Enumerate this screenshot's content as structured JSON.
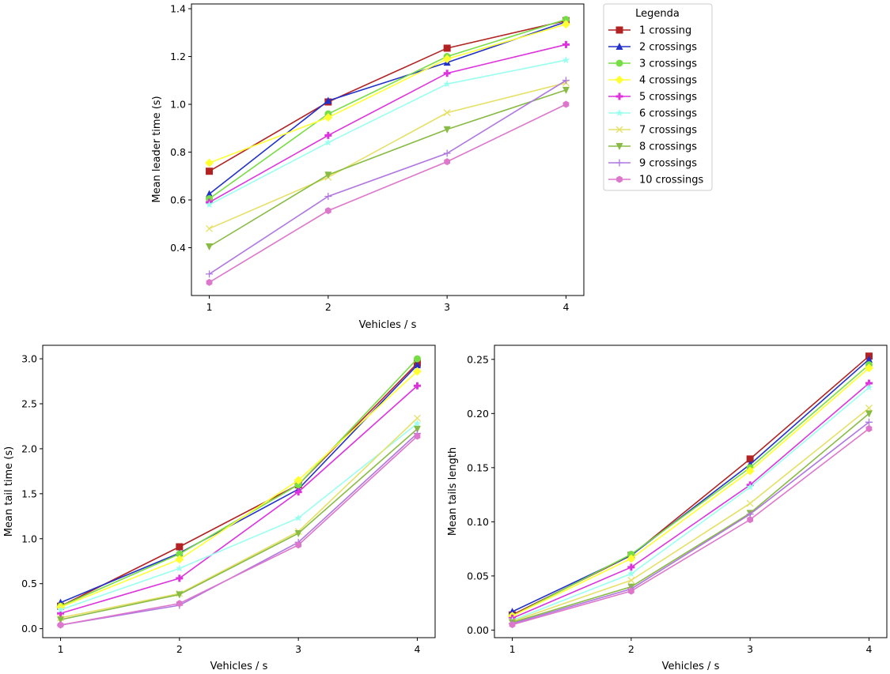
{
  "legend": {
    "title": "Legenda",
    "entries": [
      {
        "label": "1 crossing",
        "color": "#b22222",
        "marker": "square"
      },
      {
        "label": "2 crossings",
        "color": "#2231c8",
        "marker": "triangle"
      },
      {
        "label": "3 crossings",
        "color": "#77dd44",
        "marker": "circle"
      },
      {
        "label": "4 crossings",
        "color": "#ffff33",
        "marker": "diamond"
      },
      {
        "label": "5 crossings",
        "color": "#dd33dd",
        "marker": "plus"
      },
      {
        "label": "6 crossings",
        "color": "#99ffee",
        "marker": "star"
      },
      {
        "label": "7 crossings",
        "color": "#e6e066",
        "marker": "x"
      },
      {
        "label": "8 crossings",
        "color": "#88bb44",
        "marker": "triangle-down"
      },
      {
        "label": "9 crossings",
        "color": "#b077e0",
        "marker": "thin-plus"
      },
      {
        "label": "10 crossings",
        "color": "#dd77cc",
        "marker": "hexagon"
      }
    ]
  },
  "chart_data": [
    {
      "type": "line",
      "xlabel": "Vehicles / s",
      "ylabel": "Mean leader time (s)",
      "x": [
        1,
        2,
        3,
        4
      ],
      "xticks": [
        "1",
        "2",
        "3",
        "4"
      ],
      "yticks": [
        "0.4",
        "0.6",
        "0.8",
        "1.0",
        "1.2",
        "1.4"
      ],
      "xlim": [
        0.85,
        4.15
      ],
      "ylim": [
        0.2,
        1.42
      ],
      "grid": false,
      "legend": "outside-right",
      "series": [
        {
          "name": "1 crossing",
          "values": [
            0.72,
            1.01,
            1.235,
            1.35
          ]
        },
        {
          "name": "2 crossings",
          "values": [
            0.625,
            1.015,
            1.175,
            1.345
          ]
        },
        {
          "name": "3 crossings",
          "values": [
            0.605,
            0.96,
            1.2,
            1.355
          ]
        },
        {
          "name": "4 crossings",
          "values": [
            0.755,
            0.945,
            1.19,
            1.335
          ]
        },
        {
          "name": "5 crossings",
          "values": [
            0.59,
            0.87,
            1.13,
            1.25
          ]
        },
        {
          "name": "6 crossings",
          "values": [
            0.58,
            0.84,
            1.085,
            1.185
          ]
        },
        {
          "name": "7 crossings",
          "values": [
            0.48,
            0.695,
            0.965,
            1.09
          ]
        },
        {
          "name": "8 crossings",
          "values": [
            0.405,
            0.705,
            0.895,
            1.06
          ]
        },
        {
          "name": "9 crossings",
          "values": [
            0.29,
            0.615,
            0.795,
            1.1
          ]
        },
        {
          "name": "10 crossings",
          "values": [
            0.255,
            0.555,
            0.76,
            1.0
          ]
        }
      ]
    },
    {
      "type": "line",
      "xlabel": "Vehicles / s",
      "ylabel": "Mean tail time (s)",
      "x": [
        1,
        2,
        3,
        4
      ],
      "xticks": [
        "1",
        "2",
        "3",
        "4"
      ],
      "yticks": [
        "0.0",
        "0.5",
        "1.0",
        "1.5",
        "2.0",
        "2.5",
        "3.0"
      ],
      "xlim": [
        0.85,
        4.15
      ],
      "ylim": [
        -0.1,
        3.15
      ],
      "grid": false,
      "series": [
        {
          "name": "1 crossing",
          "values": [
            0.25,
            0.91,
            1.6,
            2.95
          ]
        },
        {
          "name": "2 crossings",
          "values": [
            0.29,
            0.84,
            1.55,
            2.93
          ]
        },
        {
          "name": "3 crossings",
          "values": [
            0.25,
            0.83,
            1.6,
            3.0
          ]
        },
        {
          "name": "4 crossings",
          "values": [
            0.24,
            0.77,
            1.65,
            2.86
          ]
        },
        {
          "name": "5 crossings",
          "values": [
            0.17,
            0.56,
            1.52,
            2.7
          ]
        },
        {
          "name": "6 crossings",
          "values": [
            0.21,
            0.67,
            1.23,
            2.28
          ]
        },
        {
          "name": "7 crossings",
          "values": [
            0.12,
            0.39,
            1.08,
            2.34
          ]
        },
        {
          "name": "8 crossings",
          "values": [
            0.1,
            0.38,
            1.06,
            2.22
          ]
        },
        {
          "name": "9 crossings",
          "values": [
            0.04,
            0.26,
            0.96,
            2.17
          ]
        },
        {
          "name": "10 crossings",
          "values": [
            0.04,
            0.28,
            0.93,
            2.14
          ]
        }
      ]
    },
    {
      "type": "line",
      "xlabel": "Vehicles / s",
      "ylabel": "Mean tails length",
      "x": [
        1,
        2,
        3,
        4
      ],
      "xticks": [
        "1",
        "2",
        "3",
        "4"
      ],
      "yticks": [
        "0.00",
        "0.05",
        "0.10",
        "0.15",
        "0.20",
        "0.25"
      ],
      "xlim": [
        0.85,
        4.15
      ],
      "ylim": [
        -0.007,
        0.263
      ],
      "grid": false,
      "series": [
        {
          "name": "1 crossing",
          "values": [
            0.014,
            0.069,
            0.158,
            0.253
          ]
        },
        {
          "name": "2 crossings",
          "values": [
            0.017,
            0.069,
            0.153,
            0.25
          ]
        },
        {
          "name": "3 crossings",
          "values": [
            0.013,
            0.07,
            0.15,
            0.245
          ]
        },
        {
          "name": "4 crossings",
          "values": [
            0.013,
            0.066,
            0.147,
            0.242
          ]
        },
        {
          "name": "5 crossings",
          "values": [
            0.011,
            0.058,
            0.134,
            0.228
          ]
        },
        {
          "name": "6 crossings",
          "values": [
            0.009,
            0.052,
            0.132,
            0.224
          ]
        },
        {
          "name": "7 crossings",
          "values": [
            0.008,
            0.046,
            0.117,
            0.205
          ]
        },
        {
          "name": "8 crossings",
          "values": [
            0.007,
            0.04,
            0.108,
            0.2
          ]
        },
        {
          "name": "9 crossings",
          "values": [
            0.006,
            0.038,
            0.107,
            0.192
          ]
        },
        {
          "name": "10 crossings",
          "values": [
            0.005,
            0.036,
            0.102,
            0.186
          ]
        }
      ]
    }
  ]
}
